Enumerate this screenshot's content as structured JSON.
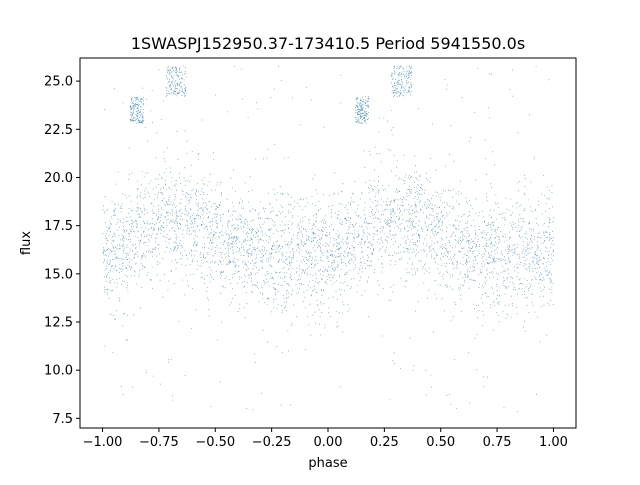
{
  "chart_data": {
    "type": "scatter",
    "title": "1SWASPJ152950.37-173410.5 Period 5941550.0s",
    "xlabel": "phase",
    "ylabel": "flux",
    "xlim": [
      -1.1,
      1.1
    ],
    "ylim": [
      7.0,
      26.2
    ],
    "x_ticks": [
      -1.0,
      -0.75,
      -0.5,
      -0.25,
      0.0,
      0.25,
      0.5,
      0.75,
      1.0
    ],
    "x_tick_labels": [
      "−1.00",
      "−0.75",
      "−0.50",
      "−0.25",
      "0.00",
      "0.25",
      "0.50",
      "0.75",
      "1.00"
    ],
    "y_ticks": [
      7.5,
      10.0,
      12.5,
      15.0,
      17.5,
      20.0,
      22.5,
      25.0
    ],
    "y_tick_labels": [
      "7.5",
      "10.0",
      "12.5",
      "15.0",
      "17.5",
      "20.0",
      "22.5",
      "25.0"
    ],
    "grid": false,
    "marker_color": "#1f77b4",
    "series": [
      {
        "x_range": [
          -1.0,
          1.0
        ],
        "band_center_profile": {
          "x": [
            0.0,
            0.1,
            0.2,
            0.3,
            0.4,
            0.5,
            0.6,
            0.7,
            0.8,
            0.9,
            1.0
          ],
          "y": [
            16.0,
            16.2,
            17.3,
            18.0,
            17.5,
            16.8,
            16.2,
            16.0,
            16.0,
            16.0,
            16.0
          ]
        },
        "band_spread": 1.5,
        "outlier_range": [
          7.8,
          25.8
        ],
        "clumps": [
          {
            "x": [
              0.12,
              0.18
            ],
            "y": [
              22.8,
              24.2
            ]
          },
          {
            "x": [
              0.28,
              0.37
            ],
            "y": [
              24.2,
              25.8
            ]
          },
          {
            "x": [
              -0.88,
              -0.82
            ],
            "y": [
              22.8,
              24.2
            ]
          },
          {
            "x": [
              -0.72,
              -0.63
            ],
            "y": [
              24.2,
              25.8
            ]
          }
        ]
      }
    ]
  }
}
